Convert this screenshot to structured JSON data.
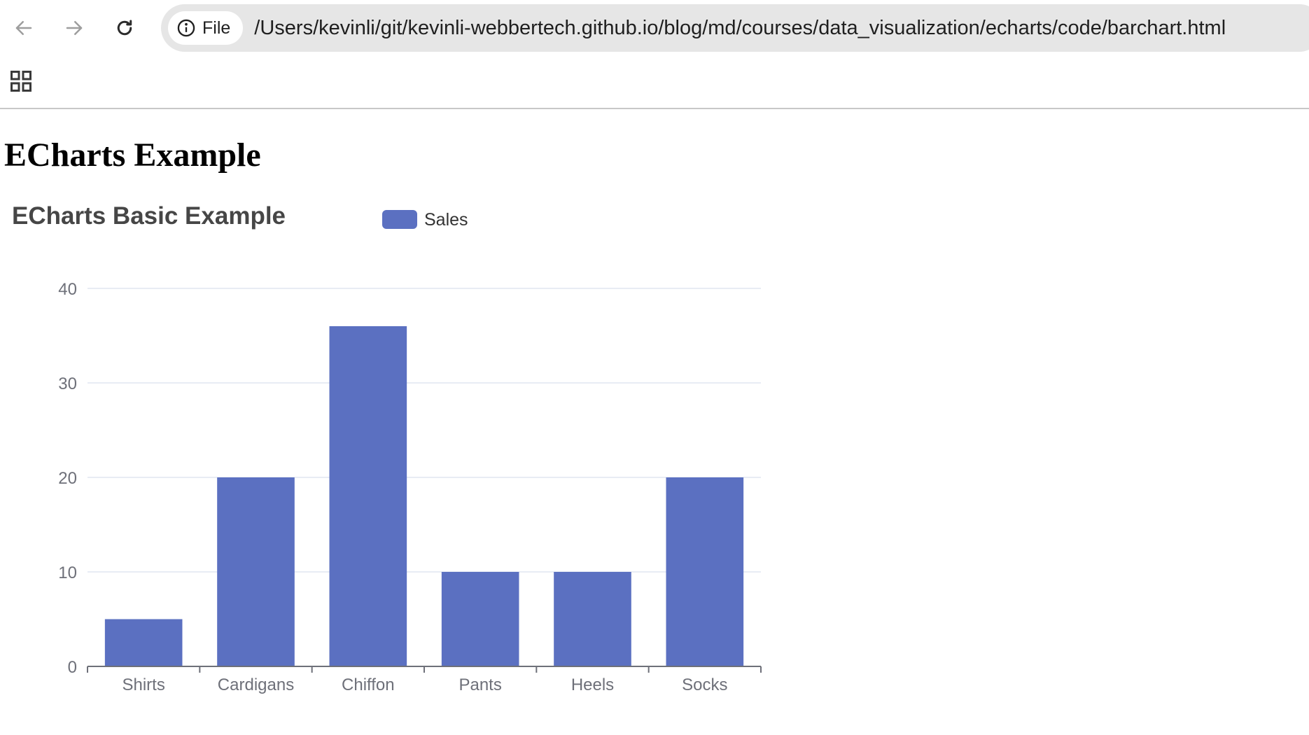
{
  "browser": {
    "file_chip_label": "File",
    "url": "/Users/kevinli/git/kevinli-webbertech.github.io/blog/md/courses/data_visualization/echarts/code/barchart.html",
    "icons": {
      "back": "arrow-left-icon",
      "forward": "arrow-right-icon",
      "reload": "reload-icon",
      "info": "info-icon",
      "apps": "apps-grid-icon"
    }
  },
  "page": {
    "heading": "ECharts Example"
  },
  "chart_data": {
    "type": "bar",
    "title": "ECharts Basic Example",
    "legend": [
      "Sales"
    ],
    "legend_position": "top-center",
    "categories": [
      "Shirts",
      "Cardigans",
      "Chiffon",
      "Pants",
      "Heels",
      "Socks"
    ],
    "series": [
      {
        "name": "Sales",
        "values": [
          5,
          20,
          36,
          10,
          10,
          20
        ]
      }
    ],
    "ylim": [
      0,
      40
    ],
    "yticks": [
      0,
      10,
      20,
      30,
      40
    ],
    "grid": true,
    "colors": {
      "bar": "#5b70c1",
      "gridline": "#e0e6f1",
      "axis": "#6e7079",
      "title": "#464646"
    }
  }
}
